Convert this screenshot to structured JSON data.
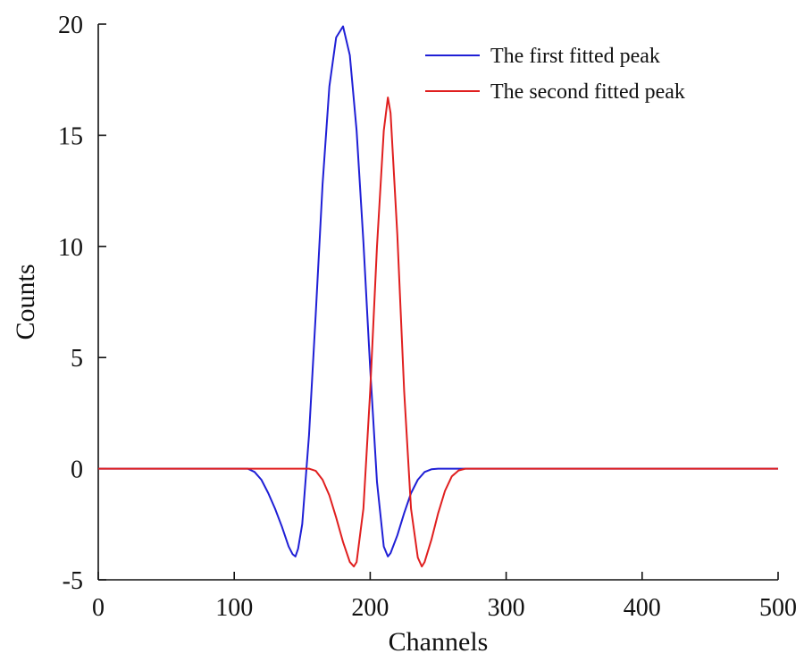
{
  "chart_data": {
    "type": "line",
    "title": "",
    "xlabel": "Channels",
    "ylabel": "Counts",
    "xlim": [
      0,
      500
    ],
    "ylim": [
      -5,
      20
    ],
    "xticks": [
      0,
      100,
      200,
      300,
      400,
      500
    ],
    "yticks": [
      -5,
      0,
      5,
      10,
      15,
      20
    ],
    "xtick_labels": [
      "0",
      "100",
      "200",
      "300",
      "400",
      "500"
    ],
    "ytick_labels": [
      "-5",
      "0",
      "5",
      "10",
      "15",
      "20"
    ],
    "grid": false,
    "legend_position": "top-right",
    "series": [
      {
        "name": "The first fitted peak",
        "color": "#1f1fd6",
        "x": [
          0,
          100,
          110,
          115,
          120,
          125,
          130,
          135,
          140,
          143,
          145,
          147,
          150,
          155,
          160,
          165,
          170,
          175,
          180,
          185,
          190,
          195,
          200,
          205,
          210,
          213,
          215,
          220,
          225,
          230,
          235,
          240,
          245,
          250,
          260,
          300,
          400,
          500
        ],
        "y": [
          0,
          0,
          0,
          -0.15,
          -0.5,
          -1.1,
          -1.8,
          -2.6,
          -3.5,
          -3.85,
          -3.95,
          -3.6,
          -2.5,
          1.5,
          7.0,
          12.8,
          17.2,
          19.4,
          19.9,
          18.6,
          15.2,
          10.2,
          4.5,
          -0.6,
          -3.5,
          -3.95,
          -3.8,
          -3.0,
          -2.0,
          -1.1,
          -0.5,
          -0.15,
          -0.03,
          0,
          0,
          0,
          0,
          0
        ]
      },
      {
        "name": "The second fitted peak",
        "color": "#e01f1f",
        "x": [
          0,
          100,
          150,
          155,
          160,
          165,
          170,
          175,
          180,
          185,
          188,
          190,
          195,
          200,
          205,
          210,
          213,
          215,
          220,
          225,
          230,
          235,
          238,
          240,
          245,
          250,
          255,
          260,
          265,
          270,
          300,
          400,
          500
        ],
        "y": [
          0,
          0,
          0,
          0,
          -0.1,
          -0.5,
          -1.2,
          -2.2,
          -3.3,
          -4.2,
          -4.4,
          -4.2,
          -1.8,
          3.5,
          10.0,
          15.2,
          16.7,
          16.0,
          10.5,
          3.5,
          -1.8,
          -4.0,
          -4.4,
          -4.2,
          -3.2,
          -2.0,
          -1.0,
          -0.35,
          -0.08,
          0,
          0,
          0,
          0
        ]
      }
    ]
  }
}
